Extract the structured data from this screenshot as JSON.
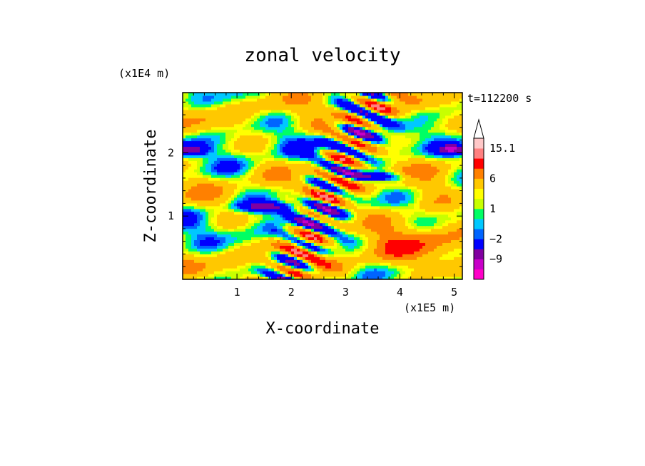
{
  "chart_data": {
    "type": "heatmap",
    "title": "zonal velocity",
    "xlabel": "X-coordinate",
    "ylabel": "Z-coordinate",
    "x_unit": "(x1E5 m)",
    "y_unit": "(x1E4 m)",
    "time_label": "t=112200 s",
    "xlim": [
      0,
      5.15
    ],
    "ylim": [
      0,
      2.95
    ],
    "x_ticks": [
      1,
      2,
      3,
      4,
      5
    ],
    "y_ticks": [
      1,
      2
    ],
    "colorbar": {
      "levels": [
        -15,
        -12,
        -9,
        -6,
        -2,
        -1,
        0,
        1,
        2,
        3,
        6,
        9,
        12,
        15.1
      ],
      "labels": [
        {
          "value": 15.1,
          "text": "15.1"
        },
        {
          "value": 6,
          "text": "6"
        },
        {
          "value": 1,
          "text": "1"
        },
        {
          "value": -2,
          "text": "−2"
        },
        {
          "value": -9,
          "text": "−9"
        }
      ],
      "colors": [
        "#ff00c8",
        "#c800c8",
        "#8000a0",
        "#0000ff",
        "#0064ff",
        "#00c8ff",
        "#00ff64",
        "#c8ff00",
        "#ffff00",
        "#ffc800",
        "#ff8000",
        "#ff0000",
        "#ff8080",
        "#ffc8c8"
      ]
    }
  }
}
